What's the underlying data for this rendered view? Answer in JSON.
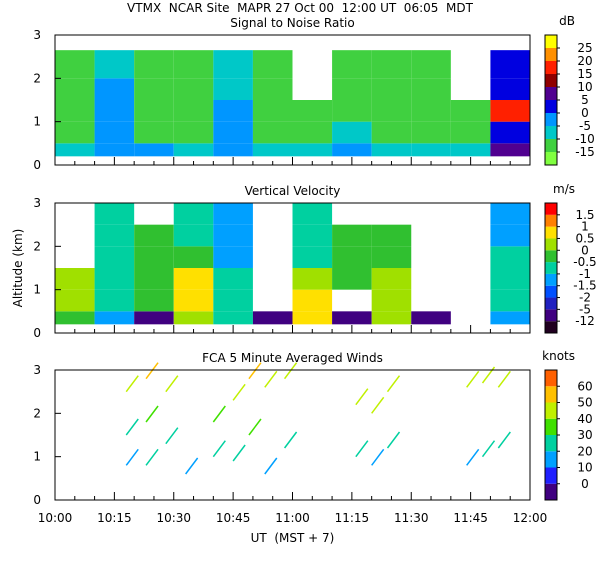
{
  "header": "VTMX  NCAR Site  MAPR 27 Oct 00  12:00 UT  06:05  MDT",
  "chart_data": [
    {
      "type": "heatmap",
      "title": "Signal to Noise Ratio",
      "xlim": [
        0,
        120
      ],
      "xticks": [
        0,
        15,
        30,
        45,
        60,
        75,
        90,
        105,
        120
      ],
      "ylim": [
        0,
        3
      ],
      "yticks": [
        0,
        1,
        2,
        3
      ],
      "xbins": [
        0,
        10,
        20,
        30,
        40,
        50,
        60,
        70,
        80,
        90,
        100,
        110,
        120
      ],
      "ybins": [
        0.2,
        0.5,
        1,
        1.5,
        2,
        2.65
      ],
      "values": [
        [
          -8,
          -3,
          -5,
          -10,
          -3,
          -8,
          -8,
          -5,
          -8,
          -8,
          -10,
          5
        ],
        [
          -12,
          -3,
          -12,
          -13,
          -3,
          -12,
          -12,
          -10,
          -12,
          -12,
          -12,
          3
        ],
        [
          -13,
          -5,
          -13,
          -14,
          -5,
          -13,
          -13,
          -11,
          -13,
          -13,
          -13,
          15
        ],
        [
          -13,
          -5,
          -13,
          -14,
          -8,
          -13,
          null,
          -11,
          -13,
          -13,
          null,
          3
        ],
        [
          -14,
          -8,
          -13,
          -14,
          -10,
          -14,
          null,
          -12,
          -13,
          -14,
          null,
          0
        ]
      ],
      "colorbar": {
        "unit": "dB",
        "ticks": [
          -15,
          -10,
          -5,
          0,
          5,
          10,
          15,
          20,
          25
        ],
        "colors": [
          "#80ff40",
          "#40d040",
          "#00c8c8",
          "#0096ff",
          "#0000e0",
          "#500090",
          "#900000",
          "#ff2000",
          "#ff9000",
          "#ffff00"
        ]
      }
    },
    {
      "type": "heatmap",
      "title": "Vertical Velocity",
      "ylabel": "Altitude (km)",
      "xlim": [
        0,
        120
      ],
      "xticks": [
        0,
        15,
        30,
        45,
        60,
        75,
        90,
        105,
        120
      ],
      "ylim": [
        0,
        3
      ],
      "yticks": [
        0,
        1,
        2,
        3
      ],
      "xbins": [
        0,
        10,
        20,
        30,
        40,
        50,
        60,
        70,
        80,
        90,
        100,
        110,
        120
      ],
      "ybins": [
        0.2,
        0.5,
        1,
        1.5,
        2,
        2.5,
        3
      ],
      "values": [
        [
          -0.3,
          -1.2,
          -12,
          0.3,
          -0.8,
          -12,
          0.8,
          -12,
          0.4,
          -12,
          null,
          -1.2
        ],
        [
          0.3,
          -0.7,
          -0.3,
          0.6,
          -0.8,
          null,
          0.7,
          null,
          0.3,
          null,
          null,
          -1
        ],
        [
          0.2,
          -0.8,
          -0.2,
          0.5,
          -0.6,
          null,
          0.4,
          -0.3,
          0.2,
          null,
          null,
          -0.8
        ],
        [
          null,
          -0.9,
          -0.4,
          -0.2,
          -1.2,
          null,
          -0.6,
          -0.4,
          -0.2,
          null,
          null,
          -0.9
        ],
        [
          null,
          -1,
          -0.5,
          -0.8,
          -1.3,
          null,
          -0.8,
          -0.3,
          -0.4,
          null,
          null,
          -1.1
        ],
        [
          null,
          -0.9,
          null,
          -0.9,
          -1.1,
          null,
          -0.6,
          null,
          null,
          null,
          null,
          -1.2
        ]
      ],
      "colorbar": {
        "unit": "m/s",
        "ticks": [
          -12,
          -5,
          -2,
          -1.5,
          -1,
          -0.5,
          0,
          0.5,
          1,
          1.5
        ],
        "colors": [
          "#200020",
          "#400080",
          "#2020c0",
          "#0050ff",
          "#00a0ff",
          "#00d0a0",
          "#30c030",
          "#a0e000",
          "#ffe000",
          "#ff8000",
          "#ff0000"
        ]
      }
    },
    {
      "type": "barbs",
      "title": "FCA 5 Minute Averaged Winds",
      "xlabel": "UT  (MST + 7)",
      "xlim": [
        0,
        120
      ],
      "xticks": [
        {
          "value": 0,
          "label": "10:00"
        },
        {
          "value": 15,
          "label": "10:15"
        },
        {
          "value": 30,
          "label": "10:30"
        },
        {
          "value": 45,
          "label": "10:45"
        },
        {
          "value": 60,
          "label": "11:00"
        },
        {
          "value": 75,
          "label": "11:15"
        },
        {
          "value": 90,
          "label": "11:30"
        },
        {
          "value": 105,
          "label": "11:45"
        },
        {
          "value": 120,
          "label": "12:00"
        }
      ],
      "ylim": [
        0,
        3
      ],
      "yticks": [
        0,
        1,
        2,
        3
      ],
      "x": [
        18,
        18,
        18,
        23,
        23,
        23,
        28,
        28,
        33,
        40,
        40,
        45,
        45,
        49,
        49,
        53,
        53,
        58,
        58,
        76,
        76,
        80,
        80,
        84,
        84,
        104,
        104,
        108,
        108,
        112,
        112
      ],
      "y": [
        2.5,
        1.5,
        0.8,
        2.8,
        1.8,
        0.8,
        2.5,
        1.3,
        0.6,
        1.8,
        1,
        2.3,
        0.9,
        2.8,
        1.5,
        2.6,
        0.6,
        2.8,
        1.2,
        2.2,
        1,
        2,
        0.8,
        2.5,
        1.2,
        2.6,
        0.8,
        2.7,
        1,
        2.6,
        1.2
      ],
      "speed": [
        45,
        25,
        15,
        50,
        35,
        20,
        45,
        25,
        10,
        30,
        20,
        45,
        20,
        50,
        30,
        45,
        10,
        45,
        25,
        40,
        20,
        40,
        15,
        45,
        25,
        45,
        10,
        45,
        20,
        45,
        20
      ],
      "colorbar": {
        "unit": "knots",
        "ticks": [
          0,
          10,
          20,
          30,
          40,
          50,
          60
        ],
        "colors": [
          "#400080",
          "#2020ff",
          "#00a0ff",
          "#00d0a0",
          "#40e000",
          "#c0f000",
          "#ffc000",
          "#ff6000"
        ]
      }
    }
  ]
}
